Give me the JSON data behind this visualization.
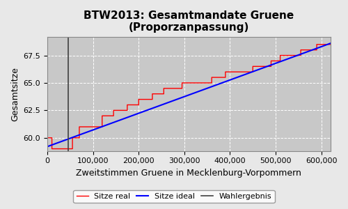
{
  "title": "BTW2013: Gesamtmandate Gruene\n(Proporzanpassung)",
  "xlabel": "Zweitstimmen Gruene in Mecklenburg-Vorpommern",
  "ylabel": "Gesamtsitze",
  "x_min": 0,
  "x_max": 620000,
  "y_min": 58.8,
  "y_max": 69.2,
  "wahlergebnis_x": 45000,
  "ideal_start_x": 0,
  "ideal_start_y": 59.2,
  "ideal_end_x": 620000,
  "ideal_end_y": 68.6,
  "step_x": [
    0,
    0.5,
    0.6,
    10000,
    10001,
    55000,
    55001,
    70000,
    70001,
    120000,
    120001,
    145000,
    145001,
    175000,
    175001,
    200000,
    200001,
    230000,
    230001,
    255000,
    255001,
    295000,
    295001,
    315000,
    315001,
    360000,
    360001,
    390000,
    390001,
    420000,
    420001,
    450000,
    450001,
    490000,
    490001,
    510000,
    510001,
    555000,
    555001,
    590000,
    590001,
    620000
  ],
  "step_y": [
    59.0,
    59.0,
    60.0,
    60.0,
    59.0,
    59.0,
    60.0,
    60.0,
    61.0,
    61.0,
    62.0,
    62.0,
    62.5,
    62.5,
    63.0,
    63.0,
    63.5,
    63.5,
    64.0,
    64.0,
    64.5,
    64.5,
    65.0,
    65.0,
    65.0,
    65.0,
    65.5,
    65.5,
    66.0,
    66.0,
    66.0,
    66.0,
    66.5,
    66.5,
    67.0,
    67.0,
    67.5,
    67.5,
    68.0,
    68.0,
    68.5,
    68.5
  ],
  "bg_color": "#c8c8c8",
  "line_real_color": "#ff0000",
  "line_ideal_color": "#0000ff",
  "wahlergebnis_color": "#404040",
  "grid_color": "#ffffff",
  "title_fontsize": 11,
  "label_fontsize": 9,
  "tick_fontsize": 8,
  "legend_fontsize": 8,
  "xticks": [
    0,
    100000,
    200000,
    300000,
    400000,
    500000,
    600000
  ],
  "xtick_labels": [
    "0",
    "100,000",
    "200,000",
    "300,000",
    "400,000",
    "500,000",
    "600,000"
  ],
  "yticks": [
    60.0,
    62.5,
    65.0,
    67.5
  ]
}
